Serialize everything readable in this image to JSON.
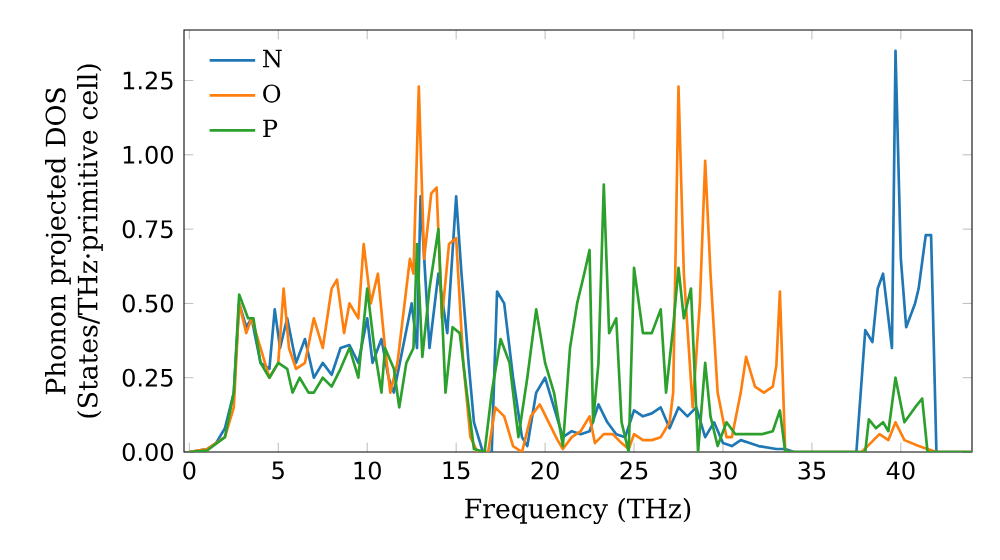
{
  "chart_data": {
    "type": "line",
    "xlabel": "Frequency (THz)",
    "ylabel": "Phonon projected DOS (States/THz·primitive cell)",
    "xlim": [
      -0.3,
      44
    ],
    "ylim": [
      0,
      1.42
    ],
    "xticks": [
      0,
      5,
      10,
      15,
      20,
      25,
      30,
      35,
      40
    ],
    "yticks": [
      {
        "value": 0,
        "label": "0.00"
      },
      {
        "value": 0.25,
        "label": "0.25"
      },
      {
        "value": 0.5,
        "label": "0.50"
      },
      {
        "value": 0.75,
        "label": "0.75"
      },
      {
        "value": 1.0,
        "label": "1.00"
      },
      {
        "value": 1.25,
        "label": "1.25"
      }
    ],
    "legend": "top left",
    "grid": false,
    "marker": "none",
    "line_style": "solid",
    "series": [
      {
        "name": "N",
        "color": "#1f77b4",
        "x": [
          0,
          1,
          1.5,
          2,
          2.5,
          2.8,
          3.2,
          3.5,
          4,
          4.5,
          4.8,
          5.1,
          5.5,
          6,
          6.5,
          7,
          7.5,
          8,
          8.5,
          9,
          9.5,
          10,
          10.3,
          10.8,
          11.2,
          11.5,
          12,
          12.5,
          12.8,
          13,
          13.5,
          14,
          14.5,
          15,
          15.3,
          15.7,
          16,
          16.5,
          17,
          17.3,
          17.7,
          18.2,
          18.7,
          19,
          19.5,
          20,
          20.5,
          21,
          21.5,
          22,
          22.5,
          23,
          23.5,
          24,
          24.5,
          25,
          25.5,
          26,
          26.5,
          27,
          27.5,
          28,
          28.5,
          29,
          29.5,
          30,
          30.5,
          31,
          31.5,
          32,
          33,
          33.5,
          34,
          37.5,
          38,
          38.4,
          38.7,
          39,
          39.5,
          39.7,
          40,
          40.3,
          40.8,
          41,
          41.4,
          41.7,
          42,
          44
        ],
        "values": [
          0,
          0.01,
          0.03,
          0.08,
          0.2,
          0.5,
          0.42,
          0.45,
          0.3,
          0.28,
          0.48,
          0.35,
          0.45,
          0.3,
          0.38,
          0.25,
          0.3,
          0.26,
          0.35,
          0.36,
          0.3,
          0.45,
          0.3,
          0.38,
          0.25,
          0.2,
          0.35,
          0.5,
          0.35,
          0.86,
          0.35,
          0.6,
          0.4,
          0.86,
          0.6,
          0.3,
          0.1,
          0,
          0,
          0.54,
          0.5,
          0.25,
          0.05,
          0.02,
          0.2,
          0.25,
          0.15,
          0.05,
          0.07,
          0.06,
          0.07,
          0.16,
          0.1,
          0.06,
          0.05,
          0.14,
          0.12,
          0.13,
          0.15,
          0.08,
          0.15,
          0.12,
          0.15,
          0.05,
          0.1,
          0.03,
          0.02,
          0.04,
          0.03,
          0.02,
          0.01,
          0.01,
          0,
          0,
          0.41,
          0.37,
          0.55,
          0.6,
          0.35,
          1.35,
          0.65,
          0.42,
          0.5,
          0.55,
          0.73,
          0.73,
          0,
          0
        ]
      },
      {
        "name": "O",
        "color": "#ff7f0e",
        "x": [
          0,
          1,
          2,
          2.5,
          2.8,
          3.2,
          3.5,
          4,
          4.5,
          5,
          5.3,
          5.6,
          6,
          6.5,
          7,
          7.5,
          8,
          8.3,
          8.7,
          9,
          9.5,
          9.8,
          10.2,
          10.6,
          11,
          11.3,
          11.7,
          12,
          12.4,
          12.6,
          12.9,
          13.2,
          13.6,
          13.9,
          14.2,
          14.6,
          15,
          15.4,
          15.8,
          16.2,
          16.8,
          17.2,
          17.7,
          18.2,
          18.7,
          19.2,
          19.7,
          20.2,
          20.7,
          21,
          21.5,
          22,
          22.5,
          22.8,
          23.3,
          23.8,
          24.3,
          24.7,
          25,
          25.5,
          26,
          26.5,
          27,
          27.2,
          27.5,
          27.8,
          28.3,
          28.7,
          29,
          29.3,
          29.7,
          30.2,
          30.5,
          31,
          31.3,
          31.8,
          32.3,
          32.8,
          33,
          33.2,
          33.5,
          37.8,
          38.3,
          38.8,
          39.3,
          39.7,
          40.2,
          41,
          42,
          44
        ],
        "values": [
          0,
          0.01,
          0.05,
          0.15,
          0.5,
          0.4,
          0.45,
          0.35,
          0.25,
          0.3,
          0.55,
          0.35,
          0.28,
          0.3,
          0.45,
          0.35,
          0.55,
          0.58,
          0.4,
          0.5,
          0.45,
          0.7,
          0.5,
          0.6,
          0.35,
          0.2,
          0.3,
          0.45,
          0.65,
          0.6,
          1.23,
          0.65,
          0.87,
          0.89,
          0.45,
          0.7,
          0.72,
          0.3,
          0.05,
          0,
          0,
          0.15,
          0.12,
          0.02,
          0,
          0.12,
          0.16,
          0.1,
          0.04,
          0.01,
          0.05,
          0.07,
          0.12,
          0.03,
          0.06,
          0.06,
          0.03,
          0.01,
          0.06,
          0.04,
          0.04,
          0.05,
          0.1,
          0.2,
          1.23,
          0.6,
          0.15,
          0.5,
          0.98,
          0.6,
          0.2,
          0.05,
          0.05,
          0.2,
          0.32,
          0.22,
          0.2,
          0.22,
          0.29,
          0.54,
          0,
          0,
          0.03,
          0.06,
          0.04,
          0.1,
          0.04,
          0.02,
          0,
          0
        ]
      },
      {
        "name": "P",
        "color": "#2ca02c",
        "x": [
          0,
          1,
          2,
          2.5,
          2.8,
          3.3,
          3.6,
          4,
          4.5,
          5,
          5.5,
          5.8,
          6.2,
          6.7,
          7,
          7.5,
          8,
          8.5,
          9,
          9.5,
          10,
          10.4,
          10.8,
          11,
          11.5,
          11.8,
          12.2,
          12.6,
          12.8,
          13.1,
          13.5,
          14,
          14.4,
          14.8,
          15.2,
          15.6,
          16,
          16.6,
          17,
          17.5,
          18,
          18.5,
          19,
          19.5,
          20,
          20.5,
          21,
          21.4,
          21.8,
          22.2,
          22.5,
          22.7,
          23,
          23.3,
          23.6,
          24,
          24.3,
          24.7,
          25,
          25.5,
          26,
          26.5,
          26.8,
          27.2,
          27.5,
          27.8,
          28.2,
          28.6,
          29,
          29.3,
          29.7,
          30.2,
          30.7,
          31.5,
          32.2,
          32.8,
          33.2,
          33.5,
          38,
          38.2,
          38.6,
          39,
          39.3,
          39.7,
          40.2,
          40.8,
          41.2,
          41.5,
          44
        ],
        "values": [
          0,
          0.005,
          0.05,
          0.2,
          0.53,
          0.45,
          0.45,
          0.3,
          0.25,
          0.3,
          0.28,
          0.2,
          0.25,
          0.2,
          0.2,
          0.25,
          0.22,
          0.28,
          0.35,
          0.25,
          0.55,
          0.35,
          0.2,
          0.35,
          0.28,
          0.15,
          0.3,
          0.35,
          0.7,
          0.32,
          0.55,
          0.75,
          0.2,
          0.42,
          0.4,
          0.2,
          0.01,
          0,
          0.2,
          0.38,
          0.3,
          0.05,
          0.25,
          0.48,
          0.3,
          0.2,
          0.02,
          0.35,
          0.5,
          0.6,
          0.68,
          0.1,
          0.3,
          0.9,
          0.4,
          0.45,
          0.1,
          0,
          0.62,
          0.4,
          0.4,
          0.48,
          0.2,
          0.42,
          0.62,
          0.45,
          0.55,
          0,
          0.3,
          0.12,
          0.02,
          0.1,
          0.06,
          0.06,
          0.06,
          0.07,
          0.14,
          0,
          0,
          0.11,
          0.08,
          0.1,
          0.07,
          0.25,
          0.1,
          0.15,
          0.18,
          0,
          0
        ]
      }
    ]
  }
}
